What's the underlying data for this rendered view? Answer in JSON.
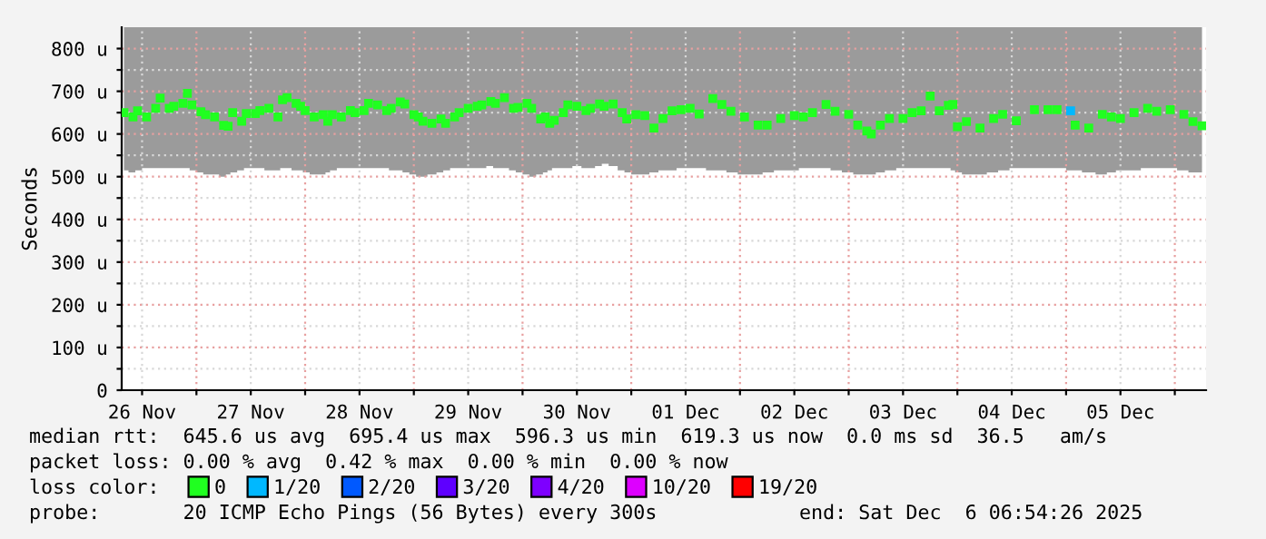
{
  "chart_data": {
    "type": "scatter",
    "ylabel": "Seconds",
    "legend_title": "loss color:",
    "legend": "bottom",
    "marker": "square",
    "grid": true,
    "xlim": [
      "2025-11-26T07:30",
      "2025-12-06T06:54"
    ],
    "xticks": [
      {
        "value": "2025-11-26T12:00",
        "label": "26 Nov"
      },
      {
        "value": "2025-11-27T00:00",
        "label": null
      },
      {
        "value": "2025-11-27T12:00",
        "label": "27 Nov"
      },
      {
        "value": "2025-11-28T00:00",
        "label": null
      },
      {
        "value": "2025-11-28T12:00",
        "label": "28 Nov"
      },
      {
        "value": "2025-11-29T00:00",
        "label": null
      },
      {
        "value": "2025-11-29T12:00",
        "label": "29 Nov"
      },
      {
        "value": "2025-11-30T00:00",
        "label": null
      },
      {
        "value": "2025-11-30T12:00",
        "label": "30 Nov"
      },
      {
        "value": "2025-12-01T00:00",
        "label": null
      },
      {
        "value": "2025-12-01T12:00",
        "label": "01 Dec"
      },
      {
        "value": "2025-12-02T00:00",
        "label": null
      },
      {
        "value": "2025-12-02T12:00",
        "label": "02 Dec"
      },
      {
        "value": "2025-12-03T00:00",
        "label": null
      },
      {
        "value": "2025-12-03T12:00",
        "label": "03 Dec"
      },
      {
        "value": "2025-12-04T00:00",
        "label": null
      },
      {
        "value": "2025-12-04T12:00",
        "label": "04 Dec"
      },
      {
        "value": "2025-12-05T00:00",
        "label": null
      },
      {
        "value": "2025-12-05T12:00",
        "label": "05 Dec"
      },
      {
        "value": "2025-12-06T00:00",
        "label": null
      }
    ],
    "ylim": [
      0,
      850
    ],
    "yticks": [
      0,
      {
        "value": 50,
        "label": null
      },
      {
        "value": 100,
        "label": "100 u"
      },
      {
        "value": 150,
        "label": null
      },
      {
        "value": 200,
        "label": "200 u"
      },
      {
        "value": 250,
        "label": null
      },
      {
        "value": 300,
        "label": "300 u"
      },
      {
        "value": 350,
        "label": null
      },
      {
        "value": 400,
        "label": "400 u"
      },
      {
        "value": 450,
        "label": null
      },
      {
        "value": 500,
        "label": "500 u"
      },
      {
        "value": 550,
        "label": null
      },
      {
        "value": 600,
        "label": "600 u"
      },
      {
        "value": 650,
        "label": null
      },
      {
        "value": 700,
        "label": "700 u"
      },
      {
        "value": 750,
        "label": null
      },
      {
        "value": 800,
        "label": "800 u"
      }
    ],
    "series": [
      {
        "name": "0",
        "color": "#20ff20",
        "x": [
          "2025-11-26T08:00",
          "2025-11-26T10:00",
          "2025-11-26T11:00",
          "2025-11-26T13:00",
          "2025-11-26T15:00",
          "2025-11-26T16:00",
          "2025-11-26T18:00",
          "2025-11-26T19:00",
          "2025-11-26T21:00",
          "2025-11-26T22:00",
          "2025-11-26T23:00",
          "2025-11-27T01:00",
          "2025-11-27T02:00",
          "2025-11-27T04:00",
          "2025-11-27T06:00",
          "2025-11-27T07:00",
          "2025-11-27T08:00",
          "2025-11-27T10:00",
          "2025-11-27T11:00",
          "2025-11-27T13:00",
          "2025-11-27T14:00",
          "2025-11-27T16:00",
          "2025-11-27T18:00",
          "2025-11-27T19:00",
          "2025-11-27T20:00",
          "2025-11-27T22:00",
          "2025-11-27T23:00",
          "2025-11-28T00:00",
          "2025-11-28T02:00",
          "2025-11-28T04:00",
          "2025-11-28T05:00",
          "2025-11-28T06:00",
          "2025-11-28T08:00",
          "2025-11-28T10:00",
          "2025-11-28T11:00",
          "2025-11-28T13:00",
          "2025-11-28T14:00",
          "2025-11-28T16:00",
          "2025-11-28T18:00",
          "2025-11-28T19:00",
          "2025-11-28T21:00",
          "2025-11-28T22:00",
          "2025-11-29T00:00",
          "2025-11-29T01:00",
          "2025-11-29T02:00",
          "2025-11-29T04:00",
          "2025-11-29T06:00",
          "2025-11-29T07:00",
          "2025-11-29T09:00",
          "2025-11-29T10:00",
          "2025-11-29T12:00",
          "2025-11-29T14:00",
          "2025-11-29T15:00",
          "2025-11-29T17:00",
          "2025-11-29T18:00",
          "2025-11-29T20:00",
          "2025-11-29T22:00",
          "2025-11-29T23:00",
          "2025-11-30T01:00",
          "2025-11-30T02:00",
          "2025-11-30T04:00",
          "2025-11-30T05:00",
          "2025-11-30T06:00",
          "2025-11-30T07:00",
          "2025-11-30T09:00",
          "2025-11-30T10:00",
          "2025-11-30T12:00",
          "2025-11-30T14:00",
          "2025-11-30T15:00",
          "2025-11-30T17:00",
          "2025-11-30T18:00",
          "2025-11-30T20:00",
          "2025-11-30T22:00",
          "2025-11-30T23:00",
          "2025-12-01T01:00",
          "2025-12-01T03:00",
          "2025-12-01T05:00",
          "2025-12-01T07:00",
          "2025-12-01T09:00",
          "2025-12-01T11:00",
          "2025-12-01T13:00",
          "2025-12-01T15:00",
          "2025-12-01T18:00",
          "2025-12-01T20:00",
          "2025-12-01T22:00",
          "2025-12-02T01:00",
          "2025-12-02T04:00",
          "2025-12-02T06:00",
          "2025-12-02T09:00",
          "2025-12-02T12:00",
          "2025-12-02T14:00",
          "2025-12-02T16:00",
          "2025-12-02T19:00",
          "2025-12-02T21:00",
          "2025-12-03T00:00",
          "2025-12-03T02:00",
          "2025-12-03T04:00",
          "2025-12-03T05:00",
          "2025-12-03T07:00",
          "2025-12-03T09:00",
          "2025-12-03T12:00",
          "2025-12-03T14:00",
          "2025-12-03T16:00",
          "2025-12-03T18:00",
          "2025-12-03T20:00",
          "2025-12-03T22:00",
          "2025-12-03T23:00",
          "2025-12-04T00:00",
          "2025-12-04T02:00",
          "2025-12-04T05:00",
          "2025-12-04T08:00",
          "2025-12-04T10:00",
          "2025-12-04T13:00",
          "2025-12-04T17:00",
          "2025-12-04T20:00",
          "2025-12-04T22:00",
          "2025-12-05T02:00",
          "2025-12-05T05:00",
          "2025-12-05T08:00",
          "2025-12-05T10:00",
          "2025-12-05T12:00",
          "2025-12-05T15:00",
          "2025-12-05T18:00",
          "2025-12-05T20:00",
          "2025-12-05T23:00",
          "2025-12-06T02:00",
          "2025-12-06T04:00",
          "2025-12-06T06:00"
        ],
        "values": [
          650,
          640,
          654,
          640,
          660,
          684,
          660,
          665,
          672,
          695,
          668,
          652,
          645,
          640,
          620,
          618,
          650,
          630,
          648,
          648,
          655,
          660,
          640,
          680,
          685,
          672,
          665,
          655,
          640,
          645,
          630,
          645,
          640,
          655,
          650,
          655,
          672,
          668,
          655,
          660,
          675,
          670,
          645,
          640,
          630,
          625,
          635,
          625,
          640,
          650,
          660,
          665,
          668,
          676,
          672,
          685,
          660,
          662,
          672,
          660,
          635,
          640,
          625,
          632,
          650,
          668,
          665,
          655,
          660,
          670,
          665,
          670,
          650,
          635,
          645,
          643,
          614,
          636,
          654,
          657,
          660,
          647,
          683,
          669,
          653,
          640,
          621,
          621,
          636,
          643,
          640,
          650,
          669,
          653,
          646,
          621,
          607,
          600,
          621,
          636,
          636,
          650,
          654,
          689,
          654,
          667,
          669,
          617,
          629,
          614,
          636,
          646,
          631,
          657,
          657,
          657,
          621,
          614,
          646,
          640,
          636,
          650,
          660,
          653,
          657,
          646,
          629,
          619
        ],
        "lower": [
          515,
          510,
          515,
          520,
          520,
          520,
          520,
          520,
          520,
          520,
          515,
          510,
          505,
          505,
          500,
          505,
          510,
          515,
          520,
          520,
          520,
          515,
          515,
          520,
          520,
          515,
          515,
          510,
          505,
          505,
          510,
          515,
          520,
          520,
          520,
          520,
          520,
          520,
          520,
          515,
          515,
          510,
          505,
          500,
          500,
          505,
          510,
          515,
          520,
          520,
          520,
          520,
          520,
          525,
          520,
          520,
          515,
          510,
          505,
          500,
          505,
          510,
          515,
          520,
          520,
          520,
          525,
          520,
          520,
          525,
          530,
          525,
          515,
          510,
          505,
          505,
          510,
          515,
          515,
          520,
          520,
          520,
          515,
          515,
          510,
          505,
          505,
          510,
          515,
          515,
          520,
          520,
          520,
          515,
          510,
          505,
          505,
          505,
          510,
          515,
          520,
          520,
          520,
          520,
          520,
          520,
          515,
          510,
          505,
          505,
          510,
          515,
          520,
          520,
          520,
          520,
          515,
          510,
          505,
          510,
          515,
          515,
          520,
          520,
          520,
          515,
          510,
          510
        ],
        "upper": [
          850,
          850,
          850,
          850,
          850,
          850,
          850,
          850,
          850,
          850,
          850,
          850,
          850,
          850,
          850,
          850,
          850,
          850,
          850,
          850,
          850,
          850,
          850,
          850,
          850,
          850,
          850,
          850,
          850,
          850,
          850,
          850,
          850,
          850,
          850,
          850,
          850,
          850,
          850,
          850,
          850,
          850,
          850,
          850,
          850,
          850,
          850,
          850,
          850,
          850,
          850,
          850,
          850,
          850,
          850,
          850,
          850,
          850,
          850,
          850,
          850,
          850,
          850,
          850,
          850,
          850,
          850,
          850,
          850,
          850,
          850,
          850,
          850,
          850,
          850,
          850,
          850,
          850,
          850,
          850,
          850,
          850,
          850,
          850,
          850,
          850,
          850,
          850,
          850,
          850,
          850,
          850,
          850,
          850,
          850,
          850,
          850,
          850,
          850,
          850,
          850,
          850,
          850,
          850,
          850,
          850,
          850,
          850,
          850,
          850,
          850,
          850,
          850,
          850,
          850,
          850,
          850,
          850,
          850,
          850,
          850,
          850,
          850,
          850,
          850,
          850,
          850,
          850
        ]
      },
      {
        "name": "1/20",
        "color": "#00b8ff",
        "x": [
          "2025-12-05T01:00"
        ],
        "values": [
          654
        ]
      },
      {
        "name": "2/20",
        "color": "#0059ff"
      },
      {
        "name": "3/20",
        "color": "#5e00ff"
      },
      {
        "name": "4/20",
        "color": "#7e00ff"
      },
      {
        "name": "10/20",
        "color": "#dd00ff"
      },
      {
        "name": "19/20",
        "color": "#ff0000"
      }
    ],
    "annotations": [
      "median rtt:  645.6 us avg  695.4 us max  596.3 us min  619.3 us now  0.0 ms sd  36.5   am/s",
      "packet loss: 0.00 % avg  0.42 % max  0.00 % min  0.00 % now",
      "probe:       20 ICMP Echo Pings (56 Bytes) every 300s",
      "end: Sat Dec  6 06:54:26 2025"
    ]
  }
}
